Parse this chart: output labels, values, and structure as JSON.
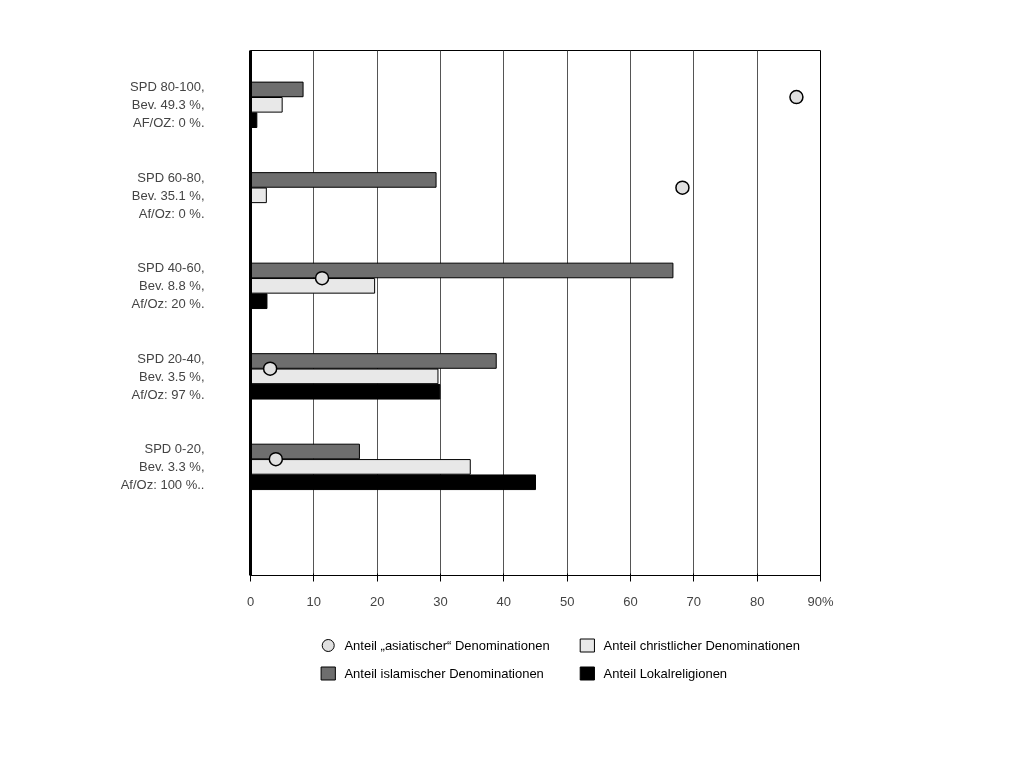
{
  "chart_data": {
    "type": "bar",
    "orientation": "horizontal",
    "categories": [
      "SPD 80-100,\nBev. 49.3 %,\nAF/OZ: 0 %.",
      "SPD 60-80,\nBev. 35.1 %,\nAf/Oz: 0 %.",
      "SPD 40-60,\nBev. 8.8 %,\nAf/Oz: 20 %.",
      "SPD 20-40,\nBev. 3.5 %,\nAf/Oz: 97 %.",
      "SPD 0-20,\nBev. 3.3 %,\nAf/Oz: 100 %.."
    ],
    "series": [
      {
        "name": "Anteil „asiatischer“ Denominationen",
        "type": "scatter",
        "color": "#e0e0e0",
        "values": [
          86.2,
          68.2,
          11.3,
          3.1,
          4.0
        ]
      },
      {
        "name": "Anteil islamischer Denominationen",
        "color": "#6e6e6e",
        "values": [
          8.3,
          29.3,
          66.7,
          38.8,
          17.2
        ]
      },
      {
        "name": "Anteil christlicher Denominationen",
        "color": "#e8e8e8",
        "values": [
          5.0,
          2.5,
          19.6,
          29.6,
          34.7
        ]
      },
      {
        "name": "Anteil Lokalreligionen",
        "color": "#000000",
        "values": [
          1.0,
          0,
          2.6,
          29.9,
          45.0
        ]
      }
    ],
    "xlim": [
      0,
      90
    ],
    "xticks": [
      0,
      10,
      20,
      30,
      40,
      50,
      60,
      70,
      80,
      {
        "value": 90,
        "label": "90%"
      }
    ],
    "grid": "x",
    "legend": "bottom",
    "marker": "circle"
  }
}
